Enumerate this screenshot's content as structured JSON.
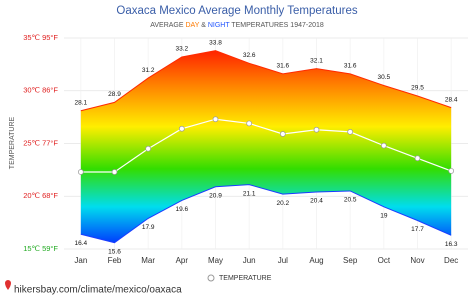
{
  "chart_data": {
    "type": "temperature-band",
    "title": "Oaxaca Mexico Average Monthly Temperatures",
    "subtitle": {
      "prefix": "AVERAGE",
      "day": "DAY",
      "amp": "&",
      "night": "NIGHT",
      "suffix": "TEMPERATURES 1947-2018"
    },
    "y_label": "TEMPERATURE",
    "categories": [
      "Jan",
      "Feb",
      "Mar",
      "Apr",
      "May",
      "Jun",
      "Jul",
      "Aug",
      "Sep",
      "Oct",
      "Nov",
      "Dec"
    ],
    "series": [
      {
        "role": "day",
        "color": "#ff2a00",
        "values": [
          28.1,
          28.9,
          31.2,
          33.2,
          33.8,
          32.6,
          31.6,
          32.1,
          31.6,
          30.5,
          29.5,
          28.4
        ]
      },
      {
        "role": "night",
        "color": "#1a3cff",
        "values": [
          16.4,
          15.6,
          17.9,
          19.6,
          20.9,
          21.1,
          20.2,
          20.4,
          20.5,
          19,
          17.7,
          16.3
        ]
      },
      {
        "name": "TEMPERATURE",
        "color": "#ffffff",
        "values": [
          22.3,
          22.3,
          24.5,
          26.4,
          27.3,
          26.9,
          25.9,
          26.3,
          26.1,
          24.8,
          23.6,
          22.4
        ]
      }
    ],
    "ylim": [
      15,
      35
    ],
    "yticks": [
      {
        "value": 15,
        "label": "15℃ 59°F"
      },
      {
        "value": 20,
        "label": "20℃ 68°F"
      },
      {
        "value": 25,
        "label": "25℃ 77°F"
      },
      {
        "value": 30,
        "label": "30℃ 86°F"
      },
      {
        "value": 35,
        "label": "35℃ 95°F"
      }
    ],
    "ytick_colors": [
      "#22aa22",
      "#e02020",
      "#e02020",
      "#e02020",
      "#e02020"
    ],
    "grid": true,
    "legend": "bottom",
    "source": "hikersbay.com/climate/mexico/oaxaca"
  }
}
